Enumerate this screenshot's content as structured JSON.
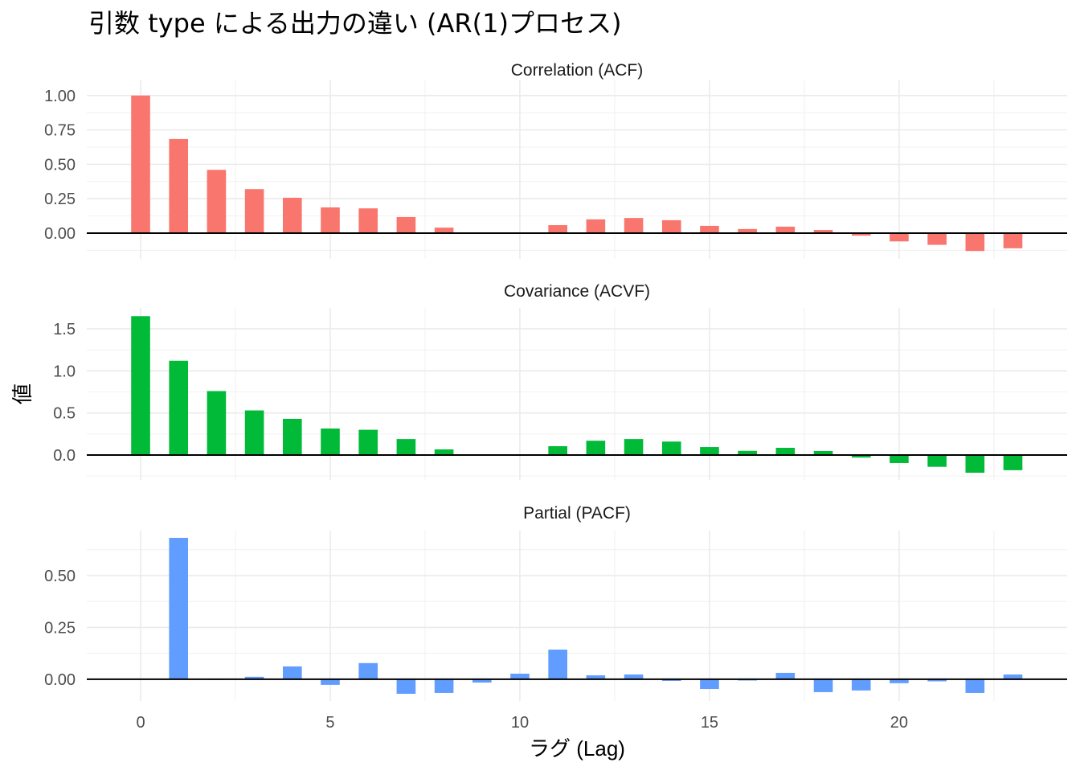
{
  "chart_data": {
    "type": "bar",
    "title": "引数 type による出力の違い (AR(1)プロセス)",
    "xlabel": "ラグ (Lag)",
    "ylabel": "値",
    "xlim": [
      -1.42,
      24.43
    ],
    "x_ticks": [
      0,
      5,
      10,
      15,
      20
    ],
    "x": [
      0,
      1,
      2,
      3,
      4,
      5,
      6,
      7,
      8,
      9,
      10,
      11,
      12,
      13,
      14,
      15,
      16,
      17,
      18,
      19,
      20,
      21,
      22,
      23
    ],
    "grid": true,
    "legend": "none",
    "panels": [
      {
        "name": "Correlation (ACF)",
        "color": "#F8766D",
        "ylim": [
          -0.187,
          1.11
        ],
        "y_ticks": [
          0,
          0.25,
          0.5,
          0.75,
          1.0
        ],
        "y_tick_labels": [
          "0.00",
          "0.25",
          "0.50",
          "0.75",
          "1.00"
        ],
        "values": [
          1.0,
          0.684,
          0.46,
          0.32,
          0.257,
          0.187,
          0.18,
          0.117,
          0.04,
          -0.005,
          -0.005,
          0.058,
          0.1,
          0.11,
          0.094,
          0.053,
          0.03,
          0.047,
          0.023,
          -0.018,
          -0.06,
          -0.085,
          -0.13,
          -0.11
        ]
      },
      {
        "name": "Covariance (ACVF)",
        "color": "#00BA38",
        "ylim": [
          -0.296,
          1.748
        ],
        "y_ticks": [
          0,
          0.5,
          1.0,
          1.5
        ],
        "y_tick_labels": [
          "0.0",
          "0.5",
          "1.0",
          "1.5"
        ],
        "values": [
          1.65,
          1.12,
          0.76,
          0.53,
          0.43,
          0.315,
          0.3,
          0.19,
          0.067,
          -0.008,
          -0.008,
          0.105,
          0.17,
          0.19,
          0.16,
          0.095,
          0.05,
          0.086,
          0.048,
          -0.03,
          -0.095,
          -0.14,
          -0.21,
          -0.18
        ]
      },
      {
        "name": "Partial (PACF)",
        "color": "#619CFF",
        "ylim": [
          -0.105,
          0.717
        ],
        "y_ticks": [
          0,
          0.25,
          0.5
        ],
        "y_tick_labels": [
          "0.00",
          "0.25",
          "0.50"
        ],
        "values": [
          null,
          0.682,
          0.0,
          0.012,
          0.062,
          -0.027,
          0.078,
          -0.07,
          -0.066,
          -0.016,
          0.027,
          0.143,
          0.019,
          0.023,
          -0.008,
          -0.047,
          -0.006,
          0.031,
          -0.062,
          -0.054,
          -0.019,
          -0.01,
          -0.066,
          0.023
        ]
      }
    ]
  }
}
